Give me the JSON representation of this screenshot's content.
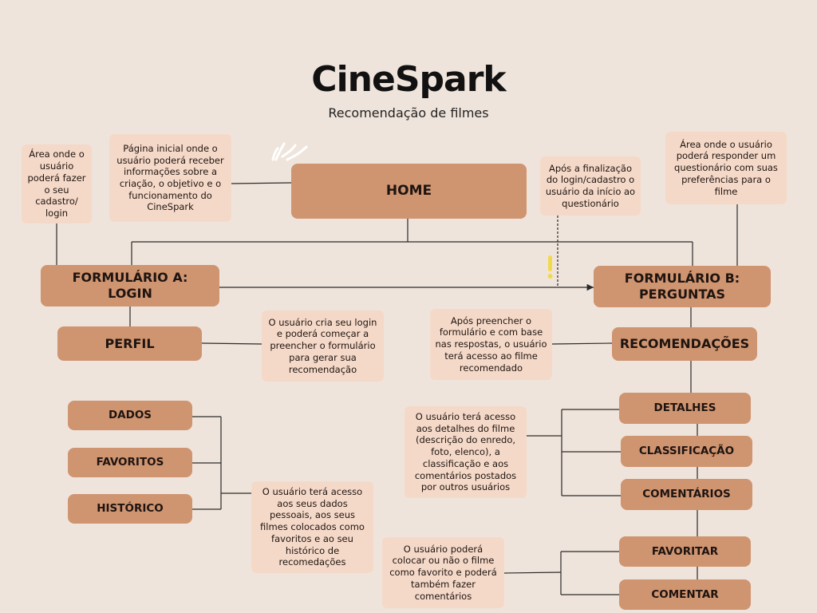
{
  "header": {
    "title": "CineSpark",
    "subtitle": "Recomendação de filmes"
  },
  "nodes": {
    "home": "HOME",
    "formulario_a": "FORMULÁRIO A:\nLOGIN",
    "formulario_b": "FORMULÁRIO B:\nPERGUNTAS",
    "perfil": "PERFIL",
    "recomendacoes": "RECOMENDAÇÕES",
    "dados": "DADOS",
    "favoritos": "FAVORITOS",
    "historico": "HISTÓRICO",
    "detalhes": "DETALHES",
    "classificacao": "CLASSIFICAÇÃO",
    "comentarios": "COMENTÁRIOS",
    "favoritar": "FAVORITAR",
    "comentar": "COMENTAR"
  },
  "notes": {
    "login_area": "Área onde o usuário poderá fazer o seu cadastro/ login",
    "home_desc": "Página inicial onde o usuário poderá receber informações sobre a criação, o objetivo e o funcionamento do CineSpark",
    "after_login": "Após a finalização do login/cadastro o usuário da início ao questionário",
    "questionnaire": "Área onde o usuário poderá responder um questionário com suas preferências para o filme",
    "perfil_desc": "O usuário cria seu login e poderá começar a preencher o formulário para gerar sua recomendação",
    "recomendacoes_desc": "Após preencher o formulário e com base nas respostas, o usuário terá acesso ao filme recomendado",
    "detalhes_desc": "O usuário terá acesso aos detalhes do filme (descrição do enredo, foto, elenco), a classificação e aos comentários postados por outros usuários",
    "dados_desc": "O usuário terá acesso aos seus dados pessoais, aos seus filmes colocados como favoritos e ao seu histórico de recomedações",
    "favoritar_desc": "O usuário poderá colocar ou não o filme como favorito e poderá também fazer comentários"
  },
  "colors": {
    "background": "#efe4db",
    "node": "#cf9470",
    "note": "#f5d9c8",
    "line": "#2a2a2a",
    "accent_yellow": "#f2d94a",
    "accent_white": "#ffffff"
  },
  "icons": {
    "sparkle": "handdrawn-sparkle-icon",
    "exclamation": "exclamation-icon"
  }
}
